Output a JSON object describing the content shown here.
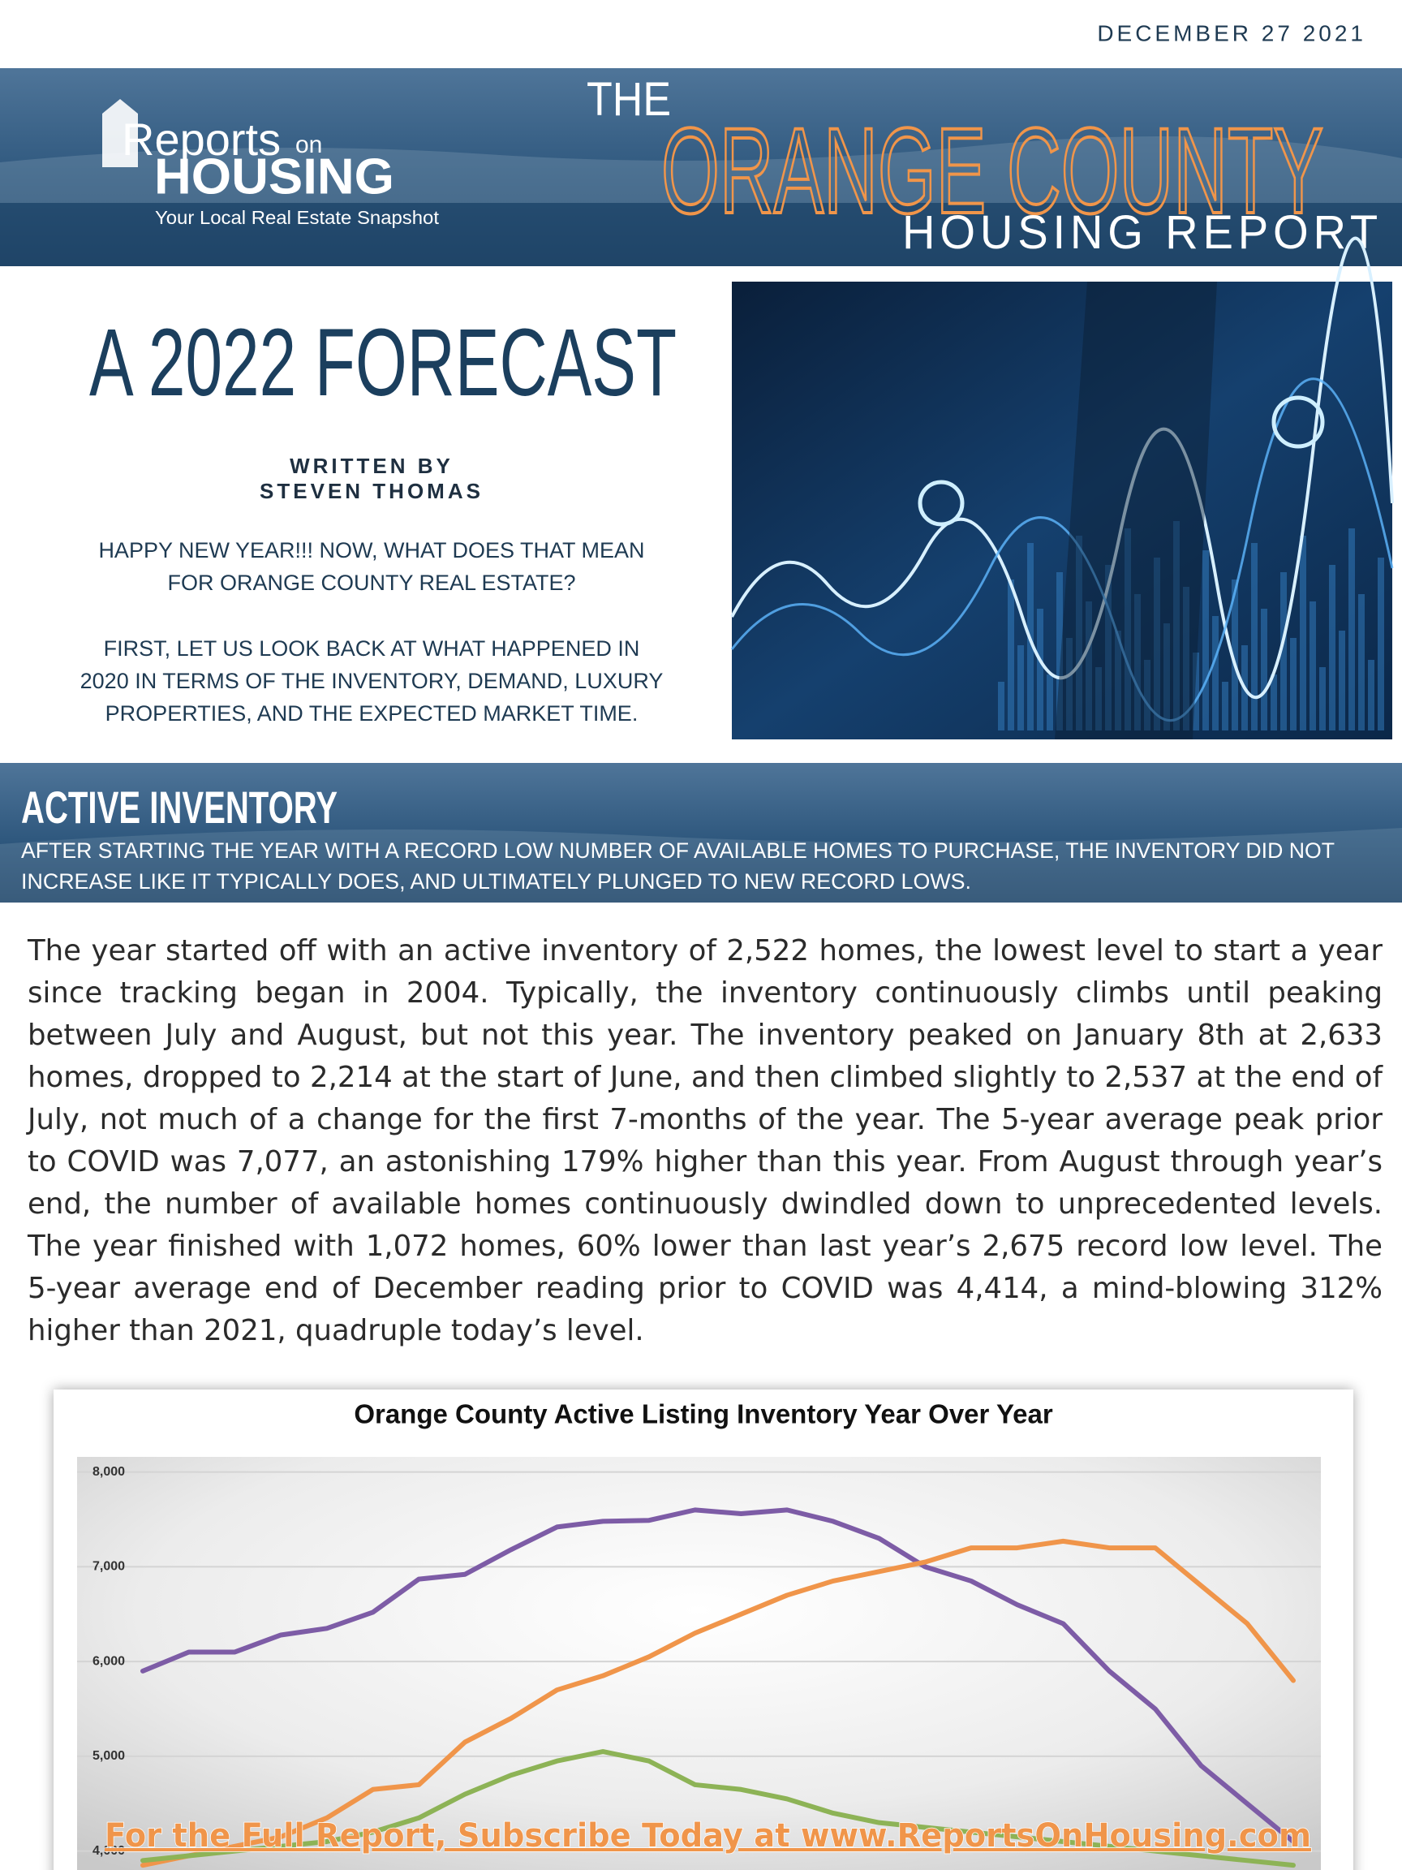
{
  "header": {
    "date": "DECEMBER 27 2021",
    "brand_reports": "Reports",
    "brand_on": "on",
    "brand_housing": "HOUSING",
    "tagline": "Your Local Real Estate Snapshot",
    "title_the": "THE",
    "title_main": "ORANGE COUNTY",
    "title_sub": "HOUSING REPORT"
  },
  "article": {
    "title": "A 2022 FORECAST",
    "byline_label": "WRITTEN BY",
    "author": "STEVEN THOMAS",
    "intro": [
      [
        "HAPPY NEW YEAR!!! NOW, WHAT DOES THAT MEAN",
        "FOR ORANGE COUNTY REAL ESTATE?"
      ],
      [
        "FIRST, LET US LOOK BACK AT WHAT HAPPENED IN",
        "2020 IN TERMS OF THE INVENTORY, DEMAND, LUXURY",
        "PROPERTIES, AND THE EXPECTED MARKET TIME."
      ]
    ]
  },
  "section": {
    "title": "ACTIVE INVENTORY",
    "subtitle": [
      "AFTER STARTING THE YEAR WITH A RECORD LOW NUMBER OF AVAILABLE HOMES TO PURCHASE, THE INVENTORY DID NOT",
      "INCREASE LIKE IT TYPICALLY DOES, AND ULTIMATELY PLUNGED TO NEW RECORD LOWS."
    ]
  },
  "body": "The year started off with an active inventory of 2,522 homes, the lowest level to start a year since tracking began in 2004. Typically, the inventory continuously climbs until peaking between July and August, but not this year. The inventory peaked on January 8th at 2,633 homes, dropped to 2,214 at the start of June, and then climbed slightly to 2,537 at the end of July, not much of a change for the first 7-months of the year. The 5-year average peak prior to COVID was 7,077, an astonishing 179% higher than this year. From August through year’s end, the number of available homes continuously dwindled down to unprecedented levels. The year finished with 1,072 homes, 60% lower than last year’s 2,675 record low level. The 5-year average end of December reading prior to COVID was 4,414, a mind-blowing 312% higher than 2021, quadruple today’s level.",
  "chart_data": {
    "type": "line",
    "title": "Orange County Active Listing Inventory Year Over Year",
    "ylim": [
      3800,
      8160
    ],
    "yticks": [
      {
        "value": 4000,
        "label": "4,000"
      },
      {
        "value": 5000,
        "label": "5,000"
      },
      {
        "value": 6000,
        "label": "6,000"
      },
      {
        "value": 7000,
        "label": "7,000"
      },
      {
        "value": 8000,
        "label": "8,000"
      }
    ],
    "grid": true,
    "series": [
      {
        "color": "#7d5ca6",
        "values": [
          5900,
          6100,
          6100,
          6280,
          6350,
          6520,
          6870,
          6920,
          7180,
          7420,
          7480,
          7490,
          7600,
          7560,
          7600,
          7480,
          7300,
          7000,
          6850,
          6600,
          6400,
          5900,
          5500,
          4900,
          4500,
          4100
        ]
      },
      {
        "color": "#f0954a",
        "values": [
          3850,
          3950,
          4050,
          4150,
          4350,
          4650,
          4700,
          5150,
          5400,
          5700,
          5850,
          6050,
          6300,
          6500,
          6700,
          6850,
          6950,
          7050,
          7200,
          7200,
          7270,
          7200,
          7200,
          6800,
          6400,
          5800
        ]
      },
      {
        "color": "#8db356",
        "values": [
          3900,
          3950,
          4000,
          4050,
          4100,
          4200,
          4350,
          4600,
          4800,
          4950,
          5050,
          4950,
          4700,
          4650,
          4550,
          4400,
          4300,
          4250,
          4200,
          4150,
          4100,
          4050,
          4000,
          3950,
          3900,
          3850
        ]
      }
    ]
  },
  "cta": "For the Full Report, Subscribe Today at www.ReportsOnHousing.com"
}
